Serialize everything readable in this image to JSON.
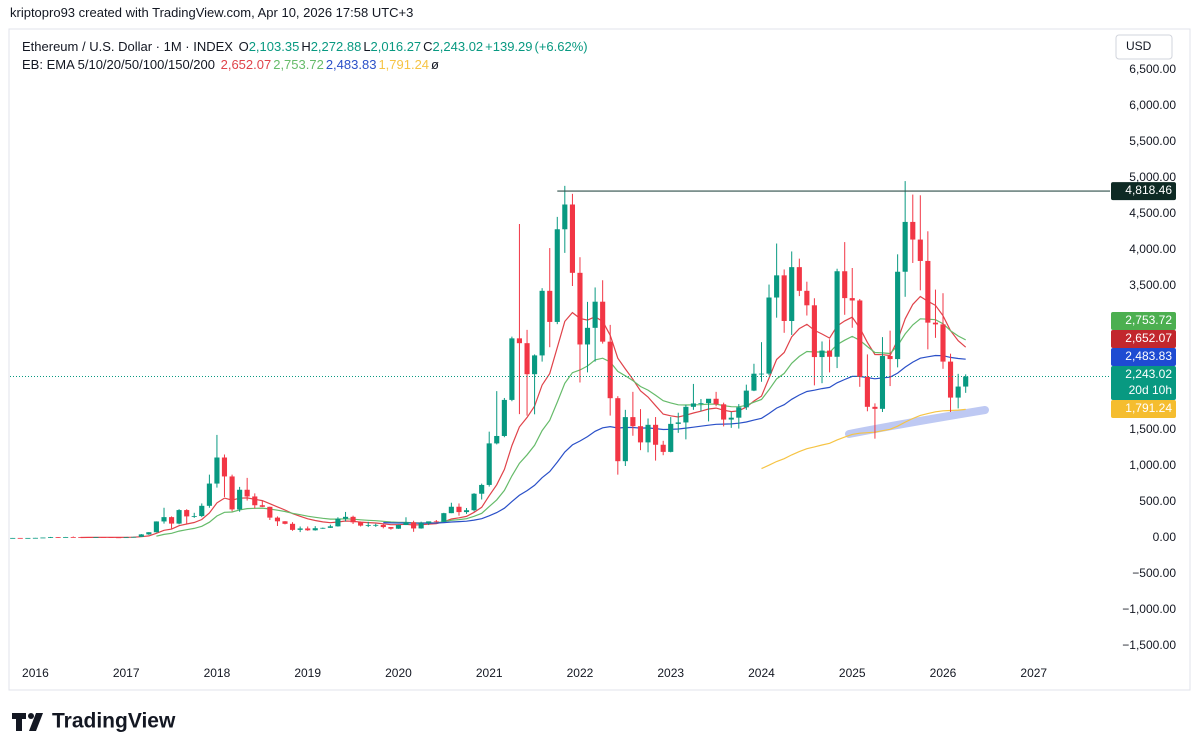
{
  "page": {
    "credit": "kriptopro93 created with TradingView.com, Apr 10, 2026 17:58 UTC+3",
    "brand": "TradingView",
    "currency": "USD"
  },
  "chart_data": {
    "type": "candlestick",
    "legend": {
      "symbol": "Ethereum / U.S. Dollar · 1M · INDEX",
      "ohlc": [
        {
          "key": "O",
          "value": 2103.35,
          "label": "2,103.35"
        },
        {
          "key": "H",
          "value": 2272.88,
          "label": "2,272.88"
        },
        {
          "key": "L",
          "value": 2016.27,
          "label": "2,016.27"
        },
        {
          "key": "C",
          "value": 2243.02,
          "label": "2,243.02"
        }
      ],
      "change": {
        "value": 139.29,
        "label": "+139.29"
      },
      "change_pct": {
        "value": 6.62,
        "label": "(+6.62%)"
      },
      "study": "EB: EMA 5/10/20/50/100/150/200",
      "study_suffix": "ø"
    },
    "up_color": "#089981",
    "down_color": "#f23645",
    "xlim": [
      2015.72,
      2027.84
    ],
    "xticks": [
      2016,
      2017,
      2018,
      2019,
      2020,
      2021,
      2022,
      2023,
      2024,
      2025,
      2026,
      2027
    ],
    "ylim": [
      -1694.4,
      7055.6
    ],
    "yticks": [
      {
        "value": -1500,
        "label": "−1,500.00"
      },
      {
        "value": -1000,
        "label": "−1,000.00"
      },
      {
        "value": -500,
        "label": "−500.00"
      },
      {
        "value": 0,
        "label": "0.00"
      },
      {
        "value": 500,
        "label": "500.00"
      },
      {
        "value": 1000,
        "label": "1,000.00"
      },
      {
        "value": 1500,
        "label": "1,500.00"
      },
      {
        "value": 3500,
        "label": "3,500.00"
      },
      {
        "value": 4000,
        "label": "4,000.00"
      },
      {
        "value": 4500,
        "label": "4,500.00"
      },
      {
        "value": 5000,
        "label": "5,000.00"
      },
      {
        "value": 5500,
        "label": "5,500.00"
      },
      {
        "value": 6000,
        "label": "6,000.00"
      },
      {
        "value": 6500,
        "label": "6,500.00"
      }
    ],
    "grid": false,
    "x": [
      2015.75,
      2015.833,
      2015.917,
      2016,
      2016.083,
      2016.167,
      2016.25,
      2016.333,
      2016.417,
      2016.5,
      2016.583,
      2016.667,
      2016.75,
      2016.833,
      2016.917,
      2017,
      2017.083,
      2017.167,
      2017.25,
      2017.333,
      2017.417,
      2017.5,
      2017.583,
      2017.667,
      2017.75,
      2017.833,
      2017.917,
      2018,
      2018.083,
      2018.167,
      2018.25,
      2018.333,
      2018.417,
      2018.5,
      2018.583,
      2018.667,
      2018.75,
      2018.833,
      2018.917,
      2019,
      2019.083,
      2019.167,
      2019.25,
      2019.333,
      2019.417,
      2019.5,
      2019.583,
      2019.667,
      2019.75,
      2019.833,
      2019.917,
      2020,
      2020.083,
      2020.167,
      2020.25,
      2020.333,
      2020.417,
      2020.5,
      2020.583,
      2020.667,
      2020.75,
      2020.833,
      2020.917,
      2021,
      2021.083,
      2021.167,
      2021.25,
      2021.333,
      2021.417,
      2021.5,
      2021.583,
      2021.667,
      2021.75,
      2021.833,
      2021.917,
      2022,
      2022.083,
      2022.167,
      2022.25,
      2022.333,
      2022.417,
      2022.5,
      2022.583,
      2022.667,
      2022.75,
      2022.833,
      2022.917,
      2023,
      2023.083,
      2023.167,
      2023.25,
      2023.333,
      2023.417,
      2023.5,
      2023.583,
      2023.667,
      2023.75,
      2023.833,
      2023.917,
      2024,
      2024.083,
      2024.167,
      2024.25,
      2024.333,
      2024.417,
      2024.5,
      2024.583,
      2024.667,
      2024.75,
      2024.833,
      2024.917,
      2025,
      2025.083,
      2025.167,
      2025.25,
      2025.333,
      2025.417,
      2025.5,
      2025.583,
      2025.667,
      2025.75,
      2025.833,
      2025.917,
      2026,
      2026.083,
      2026.167,
      2026.25
    ],
    "candles": [
      [
        0.73,
        1.2,
        0.6,
        0.9
      ],
      [
        0.9,
        1.0,
        0.8,
        0.87
      ],
      [
        0.87,
        0.95,
        0.8,
        0.93
      ],
      [
        0.93,
        2.3,
        0.9,
        2.2
      ],
      [
        2.2,
        6.5,
        2.1,
        6.4
      ],
      [
        6.4,
        15,
        6,
        11.4
      ],
      [
        11.4,
        12,
        7,
        8.9
      ],
      [
        8.9,
        15,
        8.5,
        14
      ],
      [
        14,
        21,
        11,
        12.3
      ],
      [
        12.3,
        14.8,
        10,
        11.6
      ],
      [
        11.6,
        12.3,
        10.5,
        11.4
      ],
      [
        11.4,
        14.2,
        11,
        13.2
      ],
      [
        13.2,
        13.4,
        10.5,
        11.4
      ],
      [
        11.4,
        11.5,
        8.5,
        8.8
      ],
      [
        8.8,
        9.1,
        6.2,
        8.0
      ],
      [
        8.0,
        11.3,
        7.9,
        10.7
      ],
      [
        10.7,
        16.5,
        10.4,
        16
      ],
      [
        16,
        55,
        15.5,
        50
      ],
      [
        50,
        81,
        43,
        80
      ],
      [
        80,
        231,
        79,
        230
      ],
      [
        230,
        420,
        200,
        290
      ],
      [
        290,
        300,
        130,
        200
      ],
      [
        200,
        400,
        190,
        388
      ],
      [
        388,
        400,
        190,
        300
      ],
      [
        300,
        350,
        280,
        305
      ],
      [
        305,
        480,
        290,
        447
      ],
      [
        447,
        880,
        420,
        756
      ],
      [
        756,
        1432,
        700,
        1118
      ],
      [
        1118,
        1160,
        570,
        855
      ],
      [
        855,
        880,
        370,
        397
      ],
      [
        397,
        710,
        365,
        670
      ],
      [
        670,
        835,
        520,
        577
      ],
      [
        577,
        620,
        410,
        455
      ],
      [
        455,
        515,
        430,
        433
      ],
      [
        433,
        435,
        250,
        283
      ],
      [
        283,
        300,
        167,
        232
      ],
      [
        232,
        235,
        190,
        197
      ],
      [
        197,
        220,
        100,
        113
      ],
      [
        113,
        160,
        82,
        133
      ],
      [
        133,
        160,
        100,
        107
      ],
      [
        107,
        165,
        102,
        136
      ],
      [
        136,
        145,
        127,
        141
      ],
      [
        141,
        185,
        140,
        162
      ],
      [
        162,
        288,
        158,
        268
      ],
      [
        268,
        362,
        231,
        294
      ],
      [
        294,
        310,
        195,
        218
      ],
      [
        218,
        230,
        160,
        172
      ],
      [
        172,
        225,
        152,
        180
      ],
      [
        180,
        198,
        155,
        182
      ],
      [
        182,
        195,
        134,
        152
      ],
      [
        152,
        153,
        116,
        129
      ],
      [
        129,
        185,
        127,
        180
      ],
      [
        180,
        288,
        180,
        218
      ],
      [
        218,
        240,
        86,
        133
      ],
      [
        133,
        227,
        129,
        206
      ],
      [
        206,
        216,
        180,
        231
      ],
      [
        231,
        250,
        215,
        226
      ],
      [
        226,
        350,
        222,
        345
      ],
      [
        345,
        490,
        345,
        434
      ],
      [
        434,
        480,
        310,
        360
      ],
      [
        360,
        417,
        335,
        386
      ],
      [
        386,
        623,
        370,
        615
      ],
      [
        615,
        755,
        535,
        737
      ],
      [
        737,
        1477,
        714,
        1314
      ],
      [
        1314,
        2040,
        1300,
        1417
      ],
      [
        1417,
        1945,
        1400,
        1918
      ],
      [
        1918,
        2797,
        1900,
        2773
      ],
      [
        2773,
        4362,
        1720,
        2706
      ],
      [
        2706,
        2891,
        1700,
        2275
      ],
      [
        2275,
        2550,
        1718,
        2536
      ],
      [
        2536,
        3470,
        2450,
        3433
      ],
      [
        3433,
        4027,
        2650,
        3001
      ],
      [
        3001,
        4460,
        2970,
        4288
      ],
      [
        4288,
        4891,
        3960,
        4632
      ],
      [
        4632,
        4780,
        3500,
        3683
      ],
      [
        3683,
        3900,
        2160,
        2688
      ],
      [
        2688,
        3280,
        2300,
        2919
      ],
      [
        2919,
        3480,
        2450,
        3282
      ],
      [
        3282,
        3580,
        2700,
        2727
      ],
      [
        2727,
        2960,
        1700,
        1942
      ],
      [
        1942,
        1970,
        880,
        1067
      ],
      [
        1067,
        1780,
        1000,
        1679
      ],
      [
        1679,
        2030,
        1420,
        1553
      ],
      [
        1553,
        1790,
        1220,
        1328
      ],
      [
        1328,
        1660,
        1190,
        1572
      ],
      [
        1572,
        1680,
        1075,
        1295
      ],
      [
        1295,
        1350,
        1150,
        1196
      ],
      [
        1196,
        1680,
        1190,
        1585
      ],
      [
        1585,
        1740,
        1460,
        1605
      ],
      [
        1605,
        1850,
        1370,
        1822
      ],
      [
        1822,
        2140,
        1780,
        1869
      ],
      [
        1869,
        1930,
        1760,
        1874
      ],
      [
        1874,
        1930,
        1620,
        1934
      ],
      [
        1934,
        2030,
        1830,
        1857
      ],
      [
        1857,
        1880,
        1550,
        1645
      ],
      [
        1645,
        1750,
        1530,
        1671
      ],
      [
        1671,
        1860,
        1520,
        1815
      ],
      [
        1815,
        2130,
        1780,
        2047
      ],
      [
        2047,
        2420,
        2040,
        2282
      ],
      [
        2282,
        2720,
        2170,
        2283
      ],
      [
        2283,
        3520,
        2260,
        3340
      ],
      [
        3340,
        4090,
        3060,
        3648
      ],
      [
        3648,
        3730,
        2850,
        3014
      ],
      [
        3014,
        3980,
        2820,
        3762
      ],
      [
        3762,
        3880,
        3360,
        3433
      ],
      [
        3433,
        3560,
        3090,
        3232
      ],
      [
        3232,
        3330,
        2120,
        2513
      ],
      [
        2513,
        2730,
        2150,
        2603
      ],
      [
        2603,
        2760,
        2300,
        2517
      ],
      [
        2517,
        3740,
        2360,
        3705
      ],
      [
        3705,
        4110,
        3100,
        3332
      ],
      [
        3332,
        3750,
        2920,
        3299
      ],
      [
        3299,
        3320,
        2100,
        2237
      ],
      [
        2237,
        2550,
        1760,
        1822
      ],
      [
        1822,
        1870,
        1380,
        1794
      ],
      [
        1794,
        2790,
        1750,
        2528
      ],
      [
        2528,
        2880,
        2110,
        2485
      ],
      [
        2485,
        3940,
        2370,
        3698
      ],
      [
        3698,
        4957,
        3350,
        4390
      ],
      [
        4390,
        4770,
        3820,
        4145
      ],
      [
        4145,
        4760,
        3440,
        3848
      ],
      [
        3848,
        4260,
        2620,
        2991
      ],
      [
        2991,
        3450,
        2780,
        2967
      ],
      [
        2967,
        3400,
        2350,
        2450
      ],
      [
        2450,
        2560,
        1750,
        1950
      ],
      [
        1950,
        2280,
        1800,
        2103.35
      ],
      [
        2103.35,
        2272.88,
        2016.27,
        2243.02
      ]
    ],
    "ema_lines": [
      {
        "period": 10,
        "color": "#e0434a",
        "box_color": "#c2272d",
        "value": 2652.07,
        "label": "2,652.07"
      },
      {
        "period": 20,
        "color": "#66bb6a",
        "box_color": "#4caf50",
        "value": 2753.72,
        "label": "2,753.72"
      },
      {
        "period": 50,
        "color": "#2a50c8",
        "box_color": "#1e4bd2",
        "value": 2483.83,
        "label": "2,483.83"
      },
      {
        "period": 100,
        "color": "#f6c445",
        "box_color": "#f5bd2f",
        "value": 1791.24,
        "label": "1,791.24"
      }
    ],
    "last_price": {
      "value": 2243.02,
      "label": "2,243.02",
      "countdown": "20d 10h",
      "color": "#089981"
    },
    "hline": {
      "value": 4818.46,
      "label": "4,818.46",
      "x_start": 2021.75,
      "color": "#2f4f4a",
      "box_color": "#0e2a24"
    }
  }
}
